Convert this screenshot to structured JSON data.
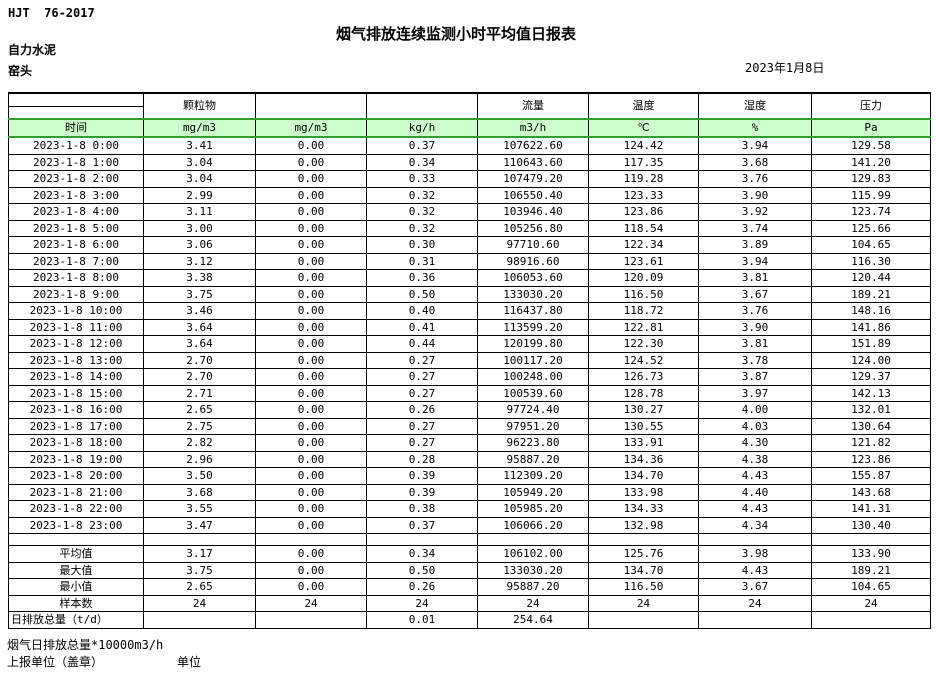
{
  "header": {
    "standard": "HJT  76-2017",
    "title": "烟气排放连续监测小时平均值日报表",
    "company": "自力水泥",
    "location": "窑头",
    "date": "2023年1月8日"
  },
  "table": {
    "group_headers": [
      "",
      "颗粒物",
      "",
      "",
      "流量",
      "温度",
      "湿度",
      "压力"
    ],
    "unit_row": [
      "时间",
      "mg/m3",
      "mg/m3",
      "kg/h",
      "m3/h",
      "℃",
      "%",
      "Pa"
    ],
    "rows": [
      [
        "2023-1-8 0:00",
        "3.41",
        "0.00",
        "0.37",
        "107622.60",
        "124.42",
        "3.94",
        "129.58"
      ],
      [
        "2023-1-8 1:00",
        "3.04",
        "0.00",
        "0.34",
        "110643.60",
        "117.35",
        "3.68",
        "141.20"
      ],
      [
        "2023-1-8 2:00",
        "3.04",
        "0.00",
        "0.33",
        "107479.20",
        "119.28",
        "3.76",
        "129.83"
      ],
      [
        "2023-1-8 3:00",
        "2.99",
        "0.00",
        "0.32",
        "106550.40",
        "123.33",
        "3.90",
        "115.99"
      ],
      [
        "2023-1-8 4:00",
        "3.11",
        "0.00",
        "0.32",
        "103946.40",
        "123.86",
        "3.92",
        "123.74"
      ],
      [
        "2023-1-8 5:00",
        "3.00",
        "0.00",
        "0.32",
        "105256.80",
        "118.54",
        "3.74",
        "125.66"
      ],
      [
        "2023-1-8 6:00",
        "3.06",
        "0.00",
        "0.30",
        "97710.60",
        "122.34",
        "3.89",
        "104.65"
      ],
      [
        "2023-1-8 7:00",
        "3.12",
        "0.00",
        "0.31",
        "98916.60",
        "123.61",
        "3.94",
        "116.30"
      ],
      [
        "2023-1-8 8:00",
        "3.38",
        "0.00",
        "0.36",
        "106053.60",
        "120.09",
        "3.81",
        "120.44"
      ],
      [
        "2023-1-8 9:00",
        "3.75",
        "0.00",
        "0.50",
        "133030.20",
        "116.50",
        "3.67",
        "189.21"
      ],
      [
        "2023-1-8 10:00",
        "3.46",
        "0.00",
        "0.40",
        "116437.80",
        "118.72",
        "3.76",
        "148.16"
      ],
      [
        "2023-1-8 11:00",
        "3.64",
        "0.00",
        "0.41",
        "113599.20",
        "122.81",
        "3.90",
        "141.86"
      ],
      [
        "2023-1-8 12:00",
        "3.64",
        "0.00",
        "0.44",
        "120199.80",
        "122.30",
        "3.81",
        "151.89"
      ],
      [
        "2023-1-8 13:00",
        "2.70",
        "0.00",
        "0.27",
        "100117.20",
        "124.52",
        "3.78",
        "124.00"
      ],
      [
        "2023-1-8 14:00",
        "2.70",
        "0.00",
        "0.27",
        "100248.00",
        "126.73",
        "3.87",
        "129.37"
      ],
      [
        "2023-1-8 15:00",
        "2.71",
        "0.00",
        "0.27",
        "100539.60",
        "128.78",
        "3.97",
        "142.13"
      ],
      [
        "2023-1-8 16:00",
        "2.65",
        "0.00",
        "0.26",
        "97724.40",
        "130.27",
        "4.00",
        "132.01"
      ],
      [
        "2023-1-8 17:00",
        "2.75",
        "0.00",
        "0.27",
        "97951.20",
        "130.55",
        "4.03",
        "130.64"
      ],
      [
        "2023-1-8 18:00",
        "2.82",
        "0.00",
        "0.27",
        "96223.80",
        "133.91",
        "4.30",
        "121.82"
      ],
      [
        "2023-1-8 19:00",
        "2.96",
        "0.00",
        "0.28",
        "95887.20",
        "134.36",
        "4.38",
        "123.86"
      ],
      [
        "2023-1-8 20:00",
        "3.50",
        "0.00",
        "0.39",
        "112309.20",
        "134.70",
        "4.43",
        "155.87"
      ],
      [
        "2023-1-8 21:00",
        "3.68",
        "0.00",
        "0.39",
        "105949.20",
        "133.98",
        "4.40",
        "143.68"
      ],
      [
        "2023-1-8 22:00",
        "3.55",
        "0.00",
        "0.38",
        "105985.20",
        "134.33",
        "4.43",
        "141.31"
      ],
      [
        "2023-1-8 23:00",
        "3.47",
        "0.00",
        "0.37",
        "106066.20",
        "132.98",
        "4.34",
        "130.40"
      ]
    ],
    "summary": [
      {
        "key": "average",
        "label": "平均值",
        "values": [
          "3.17",
          "0.00",
          "0.34",
          "106102.00",
          "125.76",
          "3.98",
          "133.90"
        ]
      },
      {
        "key": "max",
        "label": "最大值",
        "values": [
          "3.75",
          "0.00",
          "0.50",
          "133030.20",
          "134.70",
          "4.43",
          "189.21"
        ]
      },
      {
        "key": "min",
        "label": "最小值",
        "values": [
          "2.65",
          "0.00",
          "0.26",
          "95887.20",
          "116.50",
          "3.67",
          "104.65"
        ]
      },
      {
        "key": "count",
        "label": "样本数",
        "values": [
          "24",
          "24",
          "24",
          "24",
          "24",
          "24",
          "24"
        ]
      },
      {
        "key": "daily-total",
        "label": "日排放总量（t/d）",
        "values": [
          "",
          "",
          "0.01",
          "254.64",
          "",
          "",
          ""
        ]
      }
    ]
  },
  "footer": {
    "note": "烟气日排放总量*10000m3/h",
    "report_unit": "上报单位（盖章）",
    "unit_label": "单位"
  },
  "colors": {
    "unit_row_fill": "#ccffcc",
    "unit_row_border": "#2f9e2f"
  }
}
